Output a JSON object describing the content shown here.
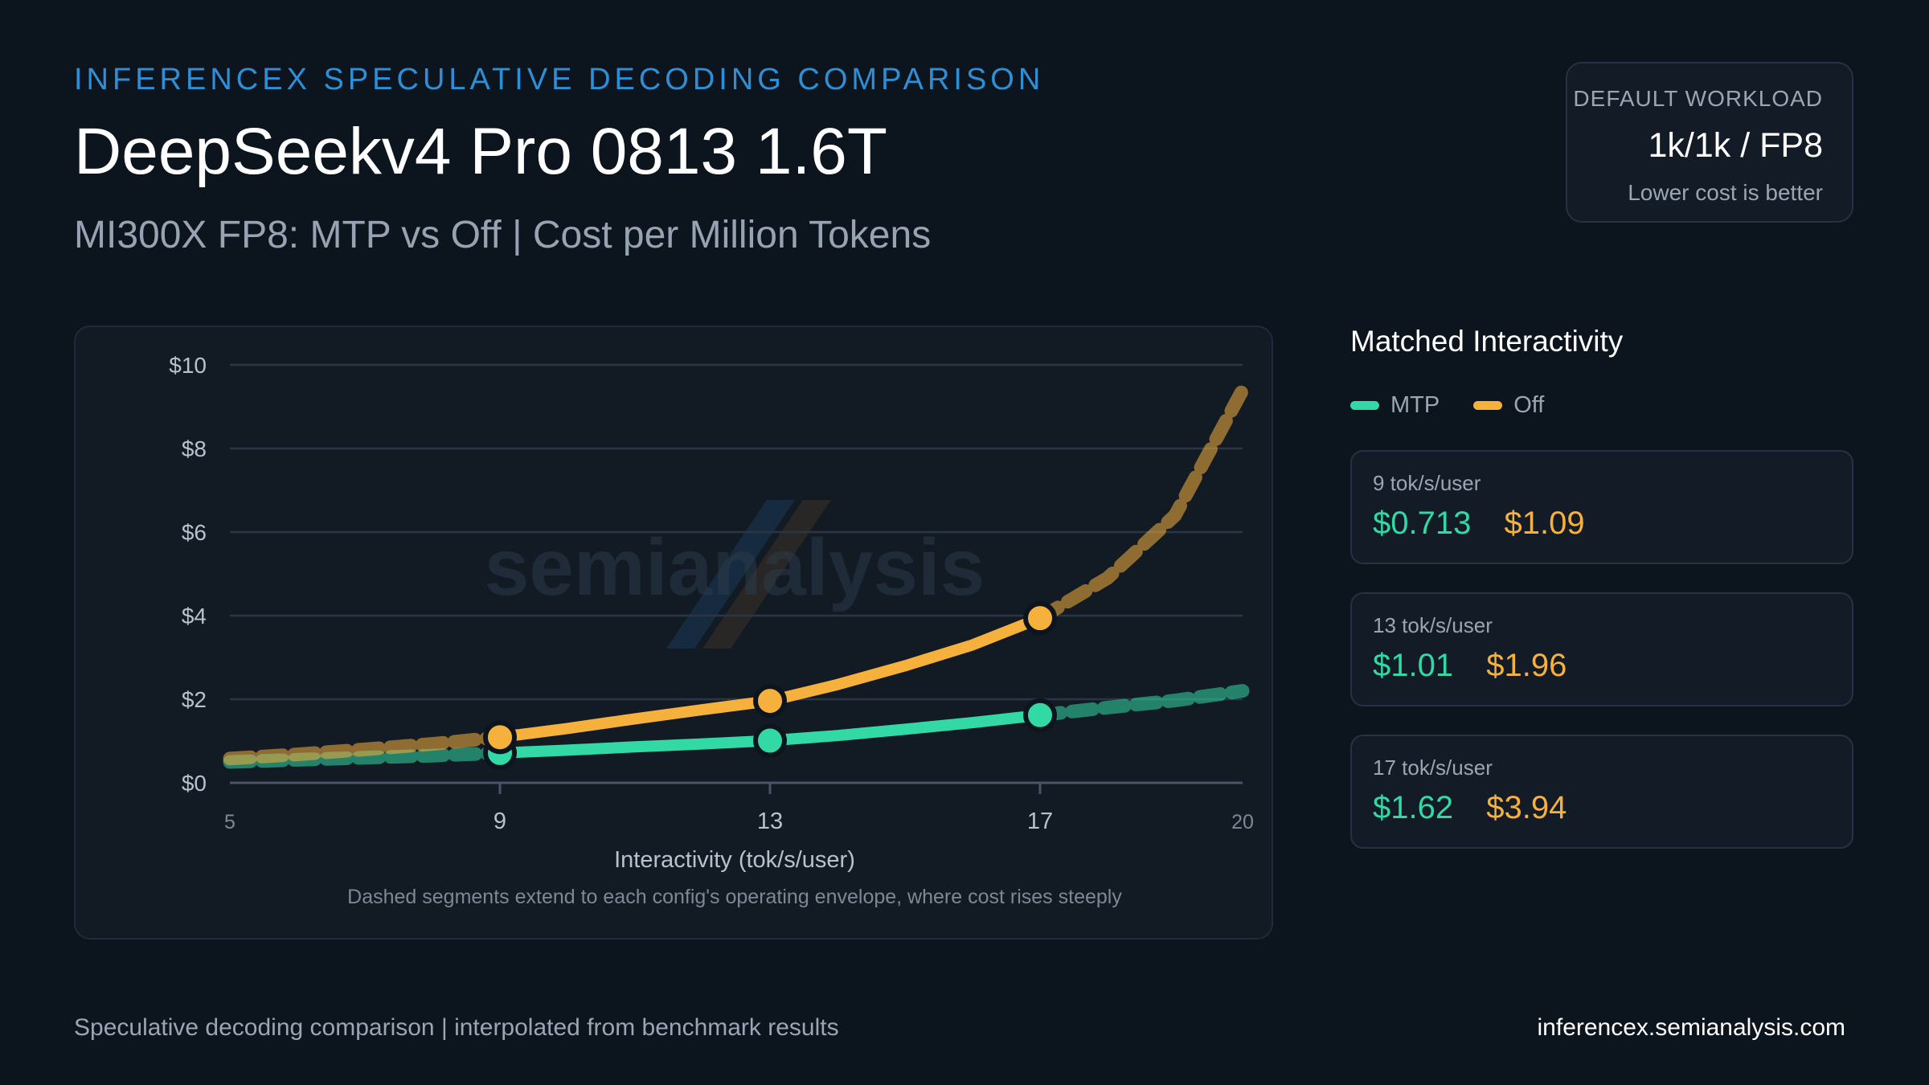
{
  "header": {
    "kicker": "INFERENCEX SPECULATIVE DECODING COMPARISON",
    "title": "DeepSeekv4 Pro 0813 1.6T",
    "subtitle": "MI300X FP8: MTP vs Off | Cost per Million Tokens"
  },
  "workload": {
    "label": "DEFAULT WORKLOAD",
    "value": "1k/1k / FP8",
    "note": "Lower cost is better"
  },
  "watermark": "semianalysis",
  "colors": {
    "mtp": "#33d9a5",
    "off": "#f6b13c",
    "background": "#0c141e",
    "panel": "#121a24"
  },
  "chart_data": {
    "type": "line",
    "xlabel": "Interactivity (tok/s/user)",
    "ylabel": "",
    "note": "Dashed segments extend to each config's operating envelope, where cost rises steeply",
    "xlim": [
      5,
      20
    ],
    "ylim": [
      0,
      10
    ],
    "x_ticks": [
      5,
      9,
      13,
      17,
      20
    ],
    "y_ticks": [
      0,
      2,
      4,
      6,
      8,
      10
    ],
    "y_tick_labels": [
      "$0",
      "$2",
      "$4",
      "$6",
      "$8",
      "$10"
    ],
    "solid_range": [
      9,
      17
    ],
    "grid": true,
    "series": [
      {
        "name": "MTP",
        "x": [
          5,
          6,
          7,
          8,
          9,
          10,
          11,
          12,
          13,
          14,
          15,
          16,
          17,
          18,
          19,
          20
        ],
        "values": [
          0.5,
          0.55,
          0.6,
          0.65,
          0.713,
          0.78,
          0.86,
          0.93,
          1.01,
          1.13,
          1.28,
          1.44,
          1.62,
          1.8,
          1.97,
          2.2
        ],
        "markers": [
          {
            "x": 9,
            "y": 0.713
          },
          {
            "x": 13,
            "y": 1.01
          },
          {
            "x": 17,
            "y": 1.62
          }
        ]
      },
      {
        "name": "Off",
        "x": [
          5,
          6,
          7,
          8,
          9,
          10,
          11,
          12,
          13,
          14,
          15,
          16,
          17,
          18,
          19,
          20
        ],
        "values": [
          0.58,
          0.68,
          0.8,
          0.93,
          1.09,
          1.3,
          1.53,
          1.75,
          1.96,
          2.35,
          2.8,
          3.3,
          3.94,
          4.9,
          6.4,
          9.4
        ],
        "markers": [
          {
            "x": 9,
            "y": 1.09
          },
          {
            "x": 13,
            "y": 1.96
          },
          {
            "x": 17,
            "y": 3.94
          }
        ]
      }
    ]
  },
  "side": {
    "title": "Matched Interactivity",
    "legend": [
      {
        "label": "MTP",
        "color": "#33d9a5"
      },
      {
        "label": "Off",
        "color": "#f6b13c"
      }
    ],
    "cards": [
      {
        "label": "9 tok/s/user",
        "mtp": "$0.713",
        "off": "$1.09"
      },
      {
        "label": "13 tok/s/user",
        "mtp": "$1.01",
        "off": "$1.96"
      },
      {
        "label": "17 tok/s/user",
        "mtp": "$1.62",
        "off": "$3.94"
      }
    ]
  },
  "footer": {
    "left": "Speculative decoding comparison | interpolated from benchmark results",
    "right": "inferencex.semianalysis.com"
  }
}
